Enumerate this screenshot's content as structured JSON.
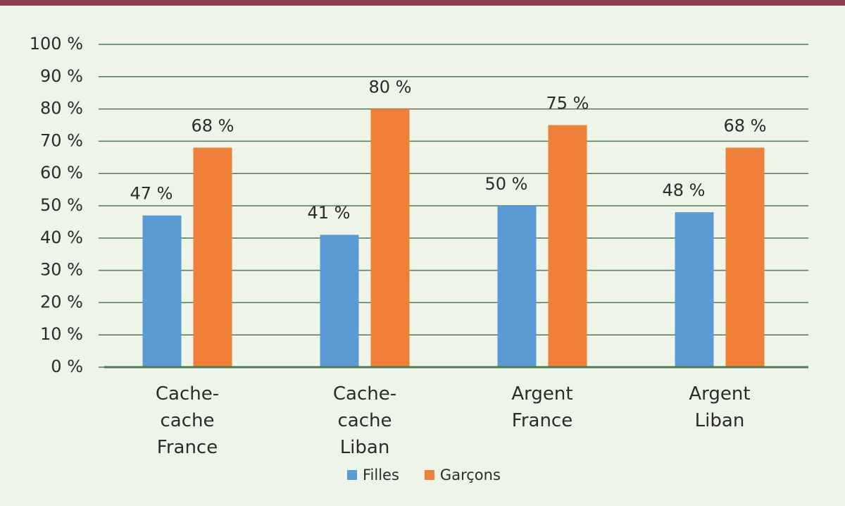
{
  "chart_data": {
    "type": "bar",
    "categories": [
      "Cache-cache France",
      "Cache-cache Liban",
      "Argent France",
      "Argent Liban"
    ],
    "series": [
      {
        "name": "Filles",
        "color": "#5b9bd5",
        "values": [
          47,
          41,
          50,
          48
        ],
        "value_labels": [
          "47 %",
          "41 %",
          "50 %",
          "48 %"
        ]
      },
      {
        "name": "Garçons",
        "color": "#f08038",
        "values": [
          68,
          80,
          75,
          68
        ],
        "value_labels": [
          "68 %",
          "80 %",
          "75 %",
          "68 %"
        ]
      }
    ],
    "ylim": [
      0,
      100
    ],
    "yticks": [
      {
        "value": 0,
        "label": "0 %"
      },
      {
        "value": 10,
        "label": "10 %"
      },
      {
        "value": 20,
        "label": "20 %"
      },
      {
        "value": 30,
        "label": "30 %"
      },
      {
        "value": 40,
        "label": "40 %"
      },
      {
        "value": 50,
        "label": "50 %"
      },
      {
        "value": 60,
        "label": "60 %"
      },
      {
        "value": 70,
        "label": "70 %"
      },
      {
        "value": 80,
        "label": "80 %"
      },
      {
        "value": 90,
        "label": "90 %"
      },
      {
        "value": 100,
        "label": "100 %"
      }
    ],
    "grid": true,
    "legend": "bottom"
  }
}
